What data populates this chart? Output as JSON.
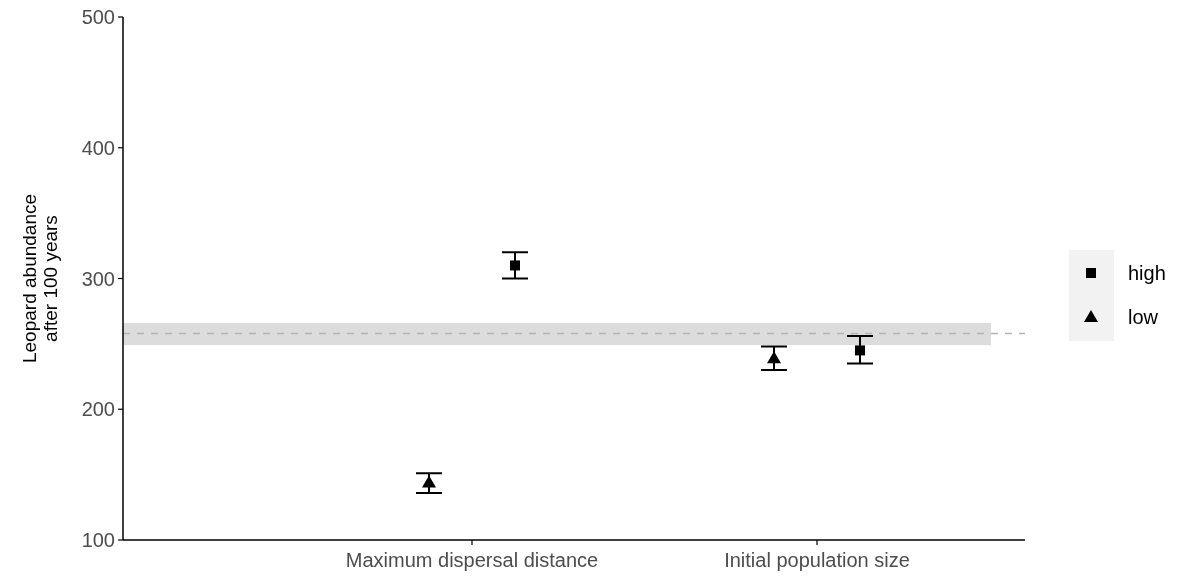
{
  "chart_data": {
    "type": "scatter",
    "ylabel": "Leopard abundance\nafter 100 years",
    "categories": [
      "Maximum dispersal distance",
      "Initial population size"
    ],
    "series": [
      {
        "name": "high",
        "color": "#000000",
        "marker": "square",
        "values": [
          310,
          245
        ],
        "errors": [
          [
            300,
            320
          ],
          [
            235,
            256
          ]
        ]
      },
      {
        "name": "low",
        "color": "#000000",
        "marker": "triangle",
        "values": [
          144,
          239
        ],
        "errors": [
          [
            136,
            151
          ],
          [
            230,
            248
          ]
        ]
      }
    ],
    "ylim": [
      100,
      500
    ],
    "yticks": [
      100,
      200,
      300,
      400,
      500
    ],
    "grid": false,
    "legend": "right",
    "ref_lines": [
      {
        "axis": "y",
        "value": 258,
        "color": "#b3b3b3",
        "line_style": "dashed"
      }
    ],
    "bands": [
      {
        "axis": "y",
        "from": 249,
        "to": 266,
        "color": "#dcdcdc"
      }
    ]
  }
}
